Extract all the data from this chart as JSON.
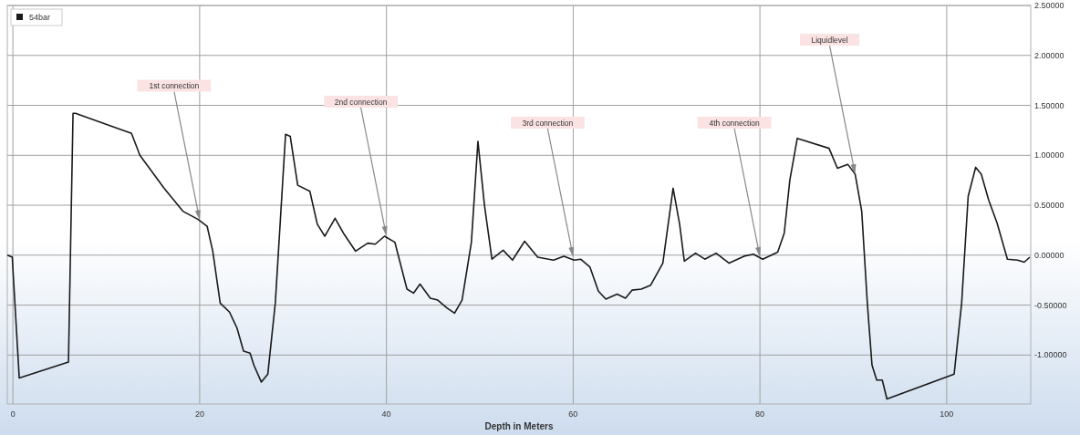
{
  "chart_data": {
    "type": "line",
    "xlabel": "Depth in Meters",
    "x": [
      -0.6,
      -0.07,
      0.68,
      5.95,
      6.44,
      6.7,
      12.7,
      13.6,
      16.2,
      18.2,
      19.8,
      20.8,
      21.4,
      22.2,
      23.2,
      24.0,
      24.7,
      25.4,
      25.8,
      26.6,
      27.3,
      28.1,
      28.7,
      29.2,
      29.7,
      30.5,
      31.8,
      32.6,
      33.4,
      34.5,
      35.4,
      36.7,
      38.0,
      38.8,
      39.8,
      40.9,
      42.2,
      42.9,
      43.6,
      44.7,
      45.5,
      46.5,
      47.3,
      48.1,
      49.1,
      49.8,
      50.5,
      51.3,
      52.5,
      53.5,
      54.8,
      56.2,
      57.9,
      59.0,
      60.1,
      60.8,
      61.8,
      62.7,
      63.5,
      64.7,
      65.6,
      66.3,
      67.3,
      68.3,
      69.6,
      70.7,
      71.4,
      71.9,
      73.1,
      74.1,
      75.3,
      76.7,
      78.3,
      79.3,
      80.3,
      81.9,
      82.6,
      83.2,
      84.0,
      87.4,
      88.3,
      89.4,
      90.2,
      90.9,
      91.5,
      92.0,
      92.5,
      93.1,
      93.6,
      100.8,
      101.6,
      102.3,
      103.1,
      103.7,
      104.5,
      105.4,
      106.5,
      107.6,
      108.3,
      108.9
    ],
    "series": [
      {
        "name": "54bar",
        "color": "#1a1a1a",
        "values": [
          0,
          -0.02,
          -1.23,
          -1.07,
          1.42,
          1.42,
          1.22,
          1.0,
          0.67,
          0.44,
          0.36,
          0.29,
          0.04,
          -0.48,
          -0.57,
          -0.73,
          -0.96,
          -0.98,
          -1.1,
          -1.27,
          -1.19,
          -0.48,
          0.44,
          1.21,
          1.19,
          0.7,
          0.64,
          0.31,
          0.19,
          0.37,
          0.22,
          0.04,
          0.12,
          0.11,
          0.19,
          0.13,
          -0.34,
          -0.38,
          -0.29,
          -0.43,
          -0.45,
          -0.53,
          -0.58,
          -0.45,
          0.13,
          1.14,
          0.5,
          -0.04,
          0.05,
          -0.05,
          0.14,
          -0.02,
          -0.05,
          -0.01,
          -0.05,
          -0.04,
          -0.12,
          -0.36,
          -0.44,
          -0.39,
          -0.43,
          -0.35,
          -0.34,
          -0.3,
          -0.08,
          0.67,
          0.31,
          -0.06,
          0.02,
          -0.04,
          0.02,
          -0.08,
          -0.01,
          0.01,
          -0.04,
          0.03,
          0.22,
          0.75,
          1.17,
          1.07,
          0.87,
          0.91,
          0.81,
          0.44,
          -0.48,
          -1.1,
          -1.25,
          -1.25,
          -1.44,
          -1.19,
          -0.48,
          0.59,
          0.88,
          0.81,
          0.55,
          0.32,
          -0.04,
          -0.05,
          -0.07,
          -0.02
        ]
      }
    ],
    "xlim": [
      -0.6,
      109
    ],
    "xticks": [
      0,
      20,
      40,
      60,
      80,
      100
    ],
    "ylim": [
      -1.49,
      2.5
    ],
    "yticks": [
      {
        "value": -1,
        "label": "-1.00000"
      },
      {
        "value": -0.5,
        "label": "-0.50000"
      },
      {
        "value": 0,
        "label": "0.00000"
      },
      {
        "value": 0.5,
        "label": "0.50000"
      },
      {
        "value": 1,
        "label": "1.00000"
      },
      {
        "value": 1.5,
        "label": "1.50000"
      },
      {
        "value": 2,
        "label": "2.00000"
      },
      {
        "value": 2.5,
        "label": "2.50000"
      }
    ],
    "annotations": [
      {
        "text": "1st connection",
        "x": 20,
        "y": 0.35
      },
      {
        "text": "2nd connection",
        "x": 40,
        "y": 0.19
      },
      {
        "text": "3rd connection",
        "x": 60,
        "y": -0.02
      },
      {
        "text": "4th connection",
        "x": 80,
        "y": -0.02
      },
      {
        "text": "Liquidlevel",
        "x": 90.2,
        "y": 0.81
      }
    ],
    "grid": true,
    "legend": "top left",
    "marker": "none",
    "line_style": "solid"
  }
}
